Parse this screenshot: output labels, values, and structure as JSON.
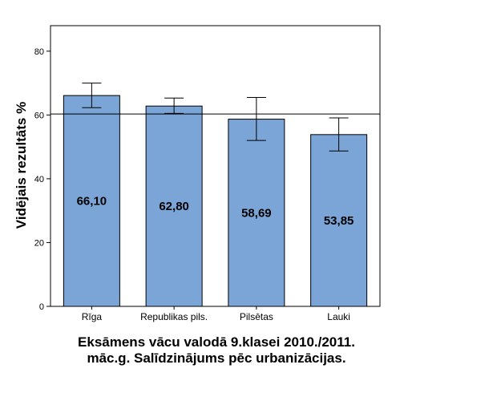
{
  "chart_data": {
    "type": "bar",
    "categories": [
      "Rīga",
      "Republikas pils.",
      "Pilsētas",
      "Lauki"
    ],
    "values": [
      66.1,
      62.8,
      58.69,
      53.85
    ],
    "value_labels": [
      "66,10",
      "62,80",
      "58,69",
      "53,85"
    ],
    "error_low": [
      62.3,
      60.5,
      52.0,
      48.7
    ],
    "error_high": [
      70.0,
      65.3,
      65.5,
      59.1
    ],
    "reference_line": 60.3,
    "ylabel": "Vidējais rezultāts %",
    "xlabel": "",
    "title_lines": [
      "Eksāmens vācu valodā 9.klasei 2010./2011.",
      "māc.g. Salīdzinājums pēc urbanizācijas."
    ],
    "ylim": [
      0,
      88
    ],
    "yticks": [
      0,
      20,
      40,
      60,
      80
    ],
    "grid": false,
    "bar_color": "#7aa5d6"
  }
}
